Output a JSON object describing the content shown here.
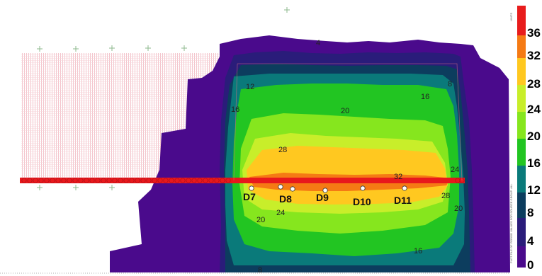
{
  "colors": {
    "c0": "#4a0a8c",
    "c4": "#2a1c7a",
    "c8": "#0c3d5e",
    "c12": "#0a7a7a",
    "c16": "#22c522",
    "c20": "#86e61e",
    "c24": "#c8ee2a",
    "c28": "#ffc820",
    "c32": "#f57a14",
    "c36": "#e81c1c",
    "lineSource": "#e8181c",
    "hatch": "#f2b6c0",
    "cross": "#8db88d"
  },
  "contour_labels": [
    "12",
    "16",
    "20",
    "28",
    "32",
    "24",
    "28",
    "24",
    "20",
    "16",
    "20",
    "16",
    "8",
    "4",
    "8"
  ],
  "receptors": [
    {
      "id": "D7",
      "label": "D7"
    },
    {
      "id": "D8",
      "label": "D8"
    },
    {
      "id": "D9",
      "label": "D9"
    },
    {
      "id": "D10",
      "label": "D10"
    },
    {
      "id": "D11",
      "label": "D11"
    }
  ],
  "legend": {
    "labels": [
      "36",
      "32",
      "28",
      "24",
      "20",
      "16",
      "12",
      "8",
      "4",
      "0"
    ],
    "caption": "PLOT FILE OF PERIOD VALUES FOR SOURCE GROUP: ALL",
    "caption_top": "UNITS"
  }
}
